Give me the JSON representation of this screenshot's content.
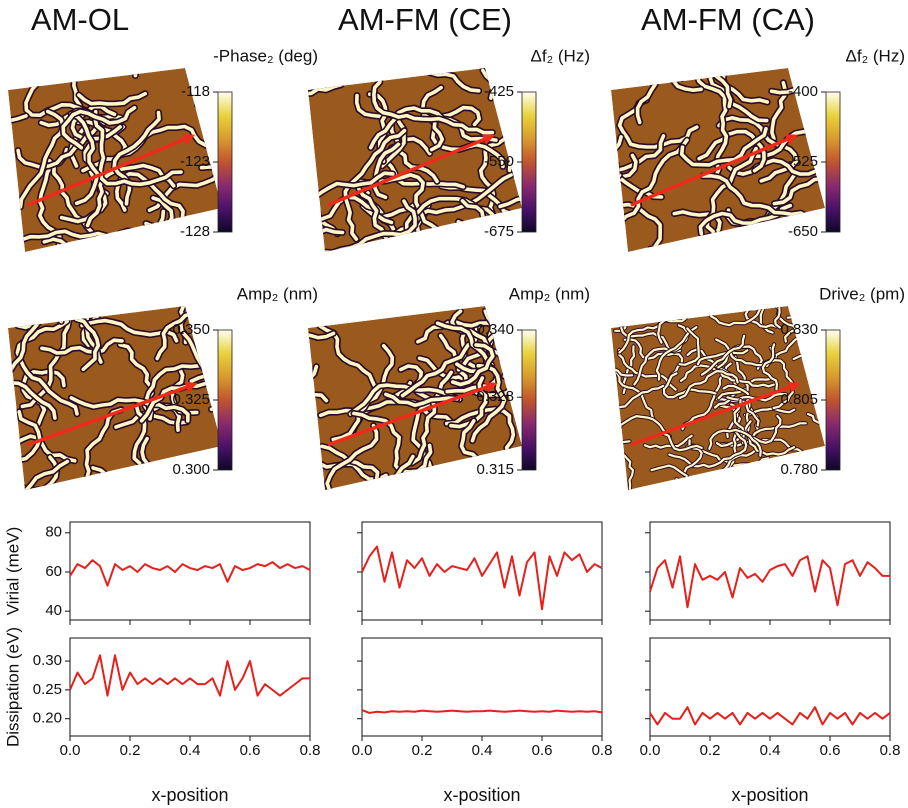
{
  "chart_data": [
    {
      "type": "heatmap",
      "title": "AM-OL",
      "colorbar_label": "-Phase₂ (deg)",
      "clim": [
        -128,
        -118
      ],
      "cticks": [
        -118,
        -123,
        -128
      ],
      "colormap": [
        "#0d0829",
        "#4a1268",
        "#8a2a6e",
        "#c1542f",
        "#d99a2e",
        "#e8d23d",
        "#fffff0"
      ]
    },
    {
      "type": "heatmap",
      "title": "AM-FM (CE)",
      "colorbar_label": "Δf₂ (Hz)",
      "clim": [
        -675,
        -425
      ],
      "cticks": [
        -425,
        -550,
        -675
      ],
      "colormap": [
        "#0d0829",
        "#4a1268",
        "#8a2a6e",
        "#c1542f",
        "#d99a2e",
        "#e8d23d",
        "#fffff0"
      ]
    },
    {
      "type": "heatmap",
      "title": "AM-FM (CA)",
      "colorbar_label": "Δf₂ (Hz)",
      "clim": [
        -650,
        -400
      ],
      "cticks": [
        -400,
        -525,
        -650
      ],
      "colormap": [
        "#0d0829",
        "#4a1268",
        "#8a2a6e",
        "#c1542f",
        "#d99a2e",
        "#e8d23d",
        "#fffff0"
      ]
    },
    {
      "type": "heatmap",
      "colorbar_label": "Amp₂ (nm)",
      "clim": [
        0.3,
        0.35
      ],
      "cticks": [
        {
          "value": 0.35,
          "label": "0.350"
        },
        0.325,
        {
          "value": 0.3,
          "label": "0.300"
        }
      ],
      "colormap": [
        "#0d0829",
        "#4a1268",
        "#8a2a6e",
        "#c1542f",
        "#d99a2e",
        "#e8d23d",
        "#fffff0"
      ]
    },
    {
      "type": "heatmap",
      "colorbar_label": "Amp₂ (nm)",
      "clim": [
        0.315,
        0.34
      ],
      "cticks": [
        {
          "value": 0.34,
          "label": "0.340"
        },
        0.328,
        0.315
      ],
      "colormap": [
        "#0d0829",
        "#4a1268",
        "#8a2a6e",
        "#c1542f",
        "#d99a2e",
        "#e8d23d",
        "#fffff0"
      ]
    },
    {
      "type": "heatmap",
      "colorbar_label": "Drive₂ (pm)",
      "clim": [
        0.78,
        0.83
      ],
      "cticks": [
        {
          "value": 0.83,
          "label": "0.830"
        },
        0.805,
        {
          "value": 0.78,
          "label": "0.780"
        }
      ],
      "colormap": [
        "#0d0829",
        "#4a1268",
        "#8a2a6e",
        "#c1542f",
        "#d99a2e",
        "#e8d23d",
        "#fffff0"
      ]
    },
    {
      "type": "line",
      "ylabel": "Virial (meV)",
      "ylim": [
        35.5,
        85.5
      ],
      "yticks": [
        40,
        60,
        80
      ],
      "xlim": [
        0,
        0.8
      ],
      "xticks": [
        0,
        0.2,
        0.4,
        0.6,
        0.8
      ],
      "x": [
        0,
        0.025,
        0.05,
        0.075,
        0.1,
        0.125,
        0.15,
        0.175,
        0.2,
        0.225,
        0.25,
        0.275,
        0.3,
        0.325,
        0.35,
        0.375,
        0.4,
        0.425,
        0.45,
        0.475,
        0.5,
        0.525,
        0.55,
        0.575,
        0.6,
        0.625,
        0.65,
        0.675,
        0.7,
        0.725,
        0.75,
        0.775,
        0.8
      ],
      "series": [
        {
          "color": "#e8201c",
          "values": [
            58,
            64,
            62,
            66,
            63,
            53,
            64,
            61,
            63,
            60,
            64,
            62,
            61,
            63,
            60,
            64,
            62,
            61,
            63,
            62,
            64,
            55,
            63,
            61,
            62,
            64,
            63,
            65,
            62,
            64,
            62,
            63,
            61
          ]
        }
      ]
    },
    {
      "type": "line",
      "ylim": [
        35.5,
        85.5
      ],
      "yticks": [
        40,
        60,
        80
      ],
      "xlim": [
        0,
        0.8
      ],
      "xticks": [
        0,
        0.2,
        0.4,
        0.6,
        0.8
      ],
      "x": [
        0,
        0.025,
        0.05,
        0.075,
        0.1,
        0.125,
        0.15,
        0.175,
        0.2,
        0.225,
        0.25,
        0.275,
        0.3,
        0.325,
        0.35,
        0.375,
        0.4,
        0.425,
        0.45,
        0.475,
        0.5,
        0.525,
        0.55,
        0.575,
        0.6,
        0.625,
        0.65,
        0.675,
        0.7,
        0.725,
        0.75,
        0.775,
        0.8
      ],
      "series": [
        {
          "color": "#e8201c",
          "values": [
            60,
            68,
            73,
            55,
            70,
            52,
            66,
            62,
            67,
            58,
            64,
            60,
            63,
            62,
            61,
            67,
            58,
            64,
            70,
            52,
            68,
            48,
            65,
            70,
            41,
            68,
            58,
            70,
            66,
            69,
            60,
            64,
            62
          ]
        }
      ]
    },
    {
      "type": "line",
      "ylim": [
        35.5,
        85.5
      ],
      "yticks": [
        40,
        60,
        80
      ],
      "xlim": [
        0,
        0.8
      ],
      "xticks": [
        0,
        0.2,
        0.4,
        0.6,
        0.8
      ],
      "x": [
        0,
        0.025,
        0.05,
        0.075,
        0.1,
        0.125,
        0.15,
        0.175,
        0.2,
        0.225,
        0.25,
        0.275,
        0.3,
        0.325,
        0.35,
        0.375,
        0.4,
        0.425,
        0.45,
        0.475,
        0.5,
        0.525,
        0.55,
        0.575,
        0.6,
        0.625,
        0.65,
        0.675,
        0.7,
        0.725,
        0.75,
        0.775,
        0.8
      ],
      "series": [
        {
          "color": "#e8201c",
          "values": [
            50,
            62,
            66,
            52,
            68,
            42,
            64,
            56,
            58,
            56,
            60,
            47,
            62,
            57,
            59,
            55,
            61,
            63,
            64,
            58,
            66,
            68,
            50,
            66,
            62,
            43,
            64,
            66,
            58,
            65,
            62,
            58,
            58
          ]
        }
      ]
    },
    {
      "type": "line",
      "ylabel": "Dissipation (eV)",
      "xlabel": "x-position",
      "ylim": [
        0.17,
        0.34
      ],
      "yticks": [
        {
          "value": 0.2,
          "label": "0.20"
        },
        0.25,
        {
          "value": 0.3,
          "label": "0.30"
        }
      ],
      "xlim": [
        0,
        0.8
      ],
      "xticks": [
        {
          "value": 0,
          "label": "0.0"
        },
        0.2,
        0.4,
        0.6,
        0.8
      ],
      "x": [
        0,
        0.025,
        0.05,
        0.075,
        0.1,
        0.125,
        0.15,
        0.175,
        0.2,
        0.225,
        0.25,
        0.275,
        0.3,
        0.325,
        0.35,
        0.375,
        0.4,
        0.425,
        0.45,
        0.475,
        0.5,
        0.525,
        0.55,
        0.575,
        0.6,
        0.625,
        0.65,
        0.675,
        0.7,
        0.725,
        0.75,
        0.775,
        0.8
      ],
      "series": [
        {
          "color": "#e8201c",
          "values": [
            0.25,
            0.28,
            0.26,
            0.27,
            0.31,
            0.24,
            0.31,
            0.25,
            0.28,
            0.26,
            0.27,
            0.26,
            0.27,
            0.26,
            0.27,
            0.26,
            0.27,
            0.26,
            0.26,
            0.27,
            0.24,
            0.3,
            0.25,
            0.27,
            0.3,
            0.24,
            0.26,
            0.25,
            0.24,
            0.25,
            0.26,
            0.27,
            0.27
          ]
        }
      ]
    },
    {
      "type": "line",
      "xlabel": "x-position",
      "ylim": [
        0.17,
        0.34
      ],
      "yticks": [
        0.2,
        0.25,
        0.3
      ],
      "xlim": [
        0,
        0.8
      ],
      "xticks": [
        {
          "value": 0,
          "label": "0.0"
        },
        0.2,
        0.4,
        0.6,
        0.8
      ],
      "x": [
        0,
        0.025,
        0.05,
        0.075,
        0.1,
        0.125,
        0.15,
        0.175,
        0.2,
        0.225,
        0.25,
        0.275,
        0.3,
        0.325,
        0.35,
        0.375,
        0.4,
        0.425,
        0.45,
        0.475,
        0.5,
        0.525,
        0.55,
        0.575,
        0.6,
        0.625,
        0.65,
        0.675,
        0.7,
        0.725,
        0.75,
        0.775,
        0.8
      ],
      "series": [
        {
          "color": "#e8201c",
          "values": [
            0.215,
            0.21,
            0.212,
            0.211,
            0.213,
            0.212,
            0.213,
            0.212,
            0.214,
            0.213,
            0.212,
            0.213,
            0.214,
            0.213,
            0.212,
            0.213,
            0.213,
            0.214,
            0.213,
            0.212,
            0.213,
            0.214,
            0.213,
            0.212,
            0.213,
            0.212,
            0.214,
            0.213,
            0.212,
            0.213,
            0.212,
            0.213,
            0.211
          ]
        }
      ]
    },
    {
      "type": "line",
      "xlabel": "x-position",
      "ylim": [
        0.17,
        0.34
      ],
      "yticks": [
        0.2,
        0.25,
        0.3
      ],
      "xlim": [
        0,
        0.8
      ],
      "xticks": [
        {
          "value": 0,
          "label": "0.0"
        },
        0.2,
        0.4,
        0.6,
        0.8
      ],
      "x": [
        0,
        0.025,
        0.05,
        0.075,
        0.1,
        0.125,
        0.15,
        0.175,
        0.2,
        0.225,
        0.25,
        0.275,
        0.3,
        0.325,
        0.35,
        0.375,
        0.4,
        0.425,
        0.45,
        0.475,
        0.5,
        0.525,
        0.55,
        0.575,
        0.6,
        0.625,
        0.65,
        0.675,
        0.7,
        0.725,
        0.75,
        0.775,
        0.8
      ],
      "series": [
        {
          "color": "#e8201c",
          "values": [
            0.21,
            0.19,
            0.21,
            0.2,
            0.2,
            0.22,
            0.19,
            0.21,
            0.2,
            0.21,
            0.2,
            0.21,
            0.19,
            0.21,
            0.2,
            0.21,
            0.2,
            0.21,
            0.2,
            0.19,
            0.21,
            0.2,
            0.22,
            0.19,
            0.21,
            0.2,
            0.21,
            0.19,
            0.21,
            0.2,
            0.21,
            0.2,
            0.21
          ]
        }
      ]
    }
  ]
}
